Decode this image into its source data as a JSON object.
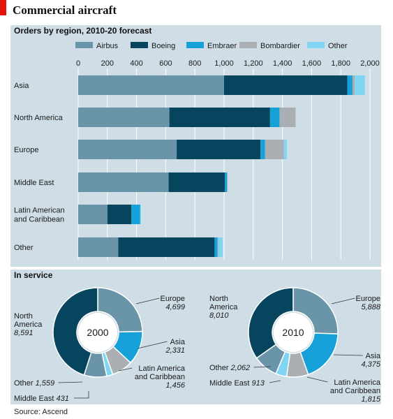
{
  "source": "Source: Ascend",
  "colors": {
    "Airbus": "#6a95a8",
    "Boeing": "#07455f",
    "Embraer": "#16a2d8",
    "Bombardier": "#a9afb3",
    "Other": "#7fd5f2"
  },
  "chart_data": [
    {
      "type": "bar",
      "orientation": "horizontal",
      "stacked": true,
      "title": "Commercial aircraft",
      "subtitle": "Orders by region, 2010-20 forecast",
      "categories": [
        "Asia",
        "North America",
        "Europe",
        "Middle East",
        "Latin American and Caribbean",
        "Other"
      ],
      "category_lines": [
        [
          "Asia"
        ],
        [
          "North America"
        ],
        [
          "Europe"
        ],
        [
          "Middle East"
        ],
        [
          "Latin American",
          "and Caribbean"
        ],
        [
          "Other"
        ]
      ],
      "series": [
        {
          "name": "Airbus",
          "values": [
            1000,
            625,
            675,
            620,
            200,
            275
          ]
        },
        {
          "name": "Boeing",
          "values": [
            845,
            690,
            575,
            385,
            165,
            660
          ]
        },
        {
          "name": "Embraer",
          "values": [
            35,
            65,
            30,
            15,
            60,
            20
          ]
        },
        {
          "name": "Bombardier",
          "values": [
            15,
            110,
            130,
            5,
            0,
            5
          ]
        },
        {
          "name": "Other",
          "values": [
            70,
            0,
            20,
            0,
            5,
            30
          ]
        }
      ],
      "xlim": [
        0,
        2000
      ],
      "xticks": [
        0,
        200,
        400,
        600,
        800,
        1000,
        1200,
        1400,
        1600,
        1800,
        2000
      ],
      "xtick_labels": [
        "0",
        "200",
        "400",
        "600",
        "800",
        "1,000",
        "1,200",
        "1,400",
        "1,600",
        "1,800",
        "2,000"
      ],
      "grid": true,
      "legend_position": "top"
    },
    {
      "type": "pie",
      "title": "In service",
      "charts": [
        {
          "label": "2000",
          "slices": [
            {
              "name": "Europe",
              "lines": [
                "Europe"
              ],
              "value": 4699,
              "value_label": "4,699",
              "color_key": "Airbus"
            },
            {
              "name": "Asia",
              "lines": [
                "Asia"
              ],
              "value": 2331,
              "value_label": "2,331",
              "color_key": "Embraer"
            },
            {
              "name": "Latin America and Caribbean",
              "lines": [
                "Latin America",
                "and Caribbean"
              ],
              "value": 1456,
              "value_label": "1,456",
              "color_key": "Bombardier"
            },
            {
              "name": "Middle East",
              "lines": [
                "Middle East"
              ],
              "value": 431,
              "value_label": "431",
              "color_key": "Other"
            },
            {
              "name": "Other",
              "lines": [
                "Other"
              ],
              "value": 1559,
              "value_label": "1,559",
              "color_key": "Airbus"
            },
            {
              "name": "North America",
              "lines": [
                "North",
                "America"
              ],
              "value": 8591,
              "value_label": "8,591",
              "color_key": "Boeing"
            }
          ]
        },
        {
          "label": "2010",
          "slices": [
            {
              "name": "Europe",
              "lines": [
                "Europe"
              ],
              "value": 5888,
              "value_label": "5,888",
              "color_key": "Airbus"
            },
            {
              "name": "Asia",
              "lines": [
                "Asia"
              ],
              "value": 4375,
              "value_label": "4,375",
              "color_key": "Embraer"
            },
            {
              "name": "Latin America and Caribbean",
              "lines": [
                "Latin America",
                "and Caribbean"
              ],
              "value": 1815,
              "value_label": "1,815",
              "color_key": "Bombardier"
            },
            {
              "name": "Middle East",
              "lines": [
                "Middle East"
              ],
              "value": 913,
              "value_label": "913",
              "color_key": "Other"
            },
            {
              "name": "Other",
              "lines": [
                "Other"
              ],
              "value": 2062,
              "value_label": "2,062",
              "color_key": "Airbus"
            },
            {
              "name": "North America",
              "lines": [
                "North",
                "America"
              ],
              "value": 8010,
              "value_label": "8,010",
              "color_key": "Boeing"
            }
          ]
        }
      ]
    }
  ]
}
